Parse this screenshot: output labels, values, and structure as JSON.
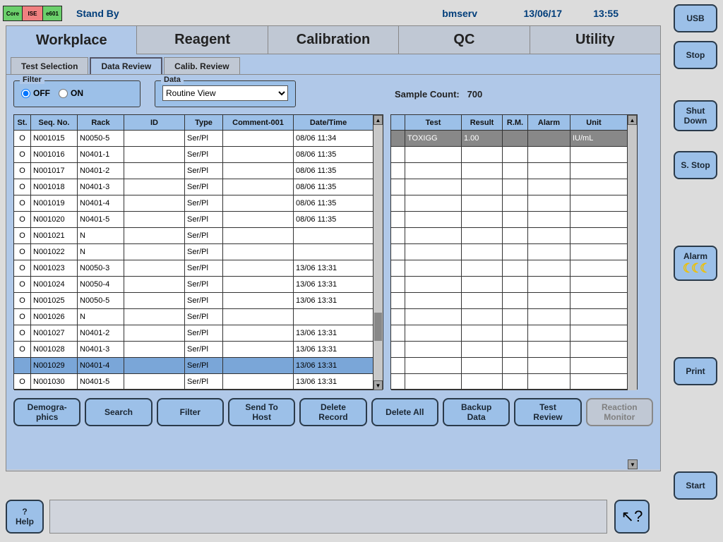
{
  "topbar": {
    "modules": [
      "Core",
      "ISE",
      "e601"
    ],
    "status": "Stand By",
    "user": "bmserv",
    "date": "13/06/17",
    "time": "13:55"
  },
  "side": {
    "usb": "USB",
    "stop": "Stop",
    "shutdown": "Shut Down",
    "sstop": "S. Stop",
    "alarm": "Alarm",
    "print": "Print",
    "start": "Start"
  },
  "main_tabs": [
    "Workplace",
    "Reagent",
    "Calibration",
    "QC",
    "Utility"
  ],
  "main_tab_active": 0,
  "sub_tabs": [
    "Test Selection",
    "Data Review",
    "Calib. Review"
  ],
  "sub_tab_active": 1,
  "filter": {
    "legend": "Filter",
    "off_label": "OFF",
    "on_label": "ON",
    "value": "OFF"
  },
  "data_box": {
    "legend": "Data",
    "selected": "Routine View"
  },
  "sample_count_label": "Sample Count:",
  "sample_count_value": "700",
  "left_headers": [
    "St.",
    "Seq. No.",
    "Rack",
    "ID",
    "Type",
    "Comment-001",
    "Date/Time"
  ],
  "left_rows": [
    {
      "st": "O",
      "seq": "N001015",
      "rack": "N0050-5",
      "id": "",
      "type": "Ser/Pl",
      "cmt": "",
      "dt": "08/06 11:34"
    },
    {
      "st": "O",
      "seq": "N001016",
      "rack": "N0401-1",
      "id": "",
      "type": "Ser/Pl",
      "cmt": "",
      "dt": "08/06 11:35"
    },
    {
      "st": "O",
      "seq": "N001017",
      "rack": "N0401-2",
      "id": "",
      "type": "Ser/Pl",
      "cmt": "",
      "dt": "08/06 11:35"
    },
    {
      "st": "O",
      "seq": "N001018",
      "rack": "N0401-3",
      "id": "",
      "type": "Ser/Pl",
      "cmt": "",
      "dt": "08/06 11:35"
    },
    {
      "st": "O",
      "seq": "N001019",
      "rack": "N0401-4",
      "id": "",
      "type": "Ser/Pl",
      "cmt": "",
      "dt": "08/06 11:35"
    },
    {
      "st": "O",
      "seq": "N001020",
      "rack": "N0401-5",
      "id": "",
      "type": "Ser/Pl",
      "cmt": "",
      "dt": "08/06 11:35"
    },
    {
      "st": "O",
      "seq": "N001021",
      "rack": "N",
      "id": "",
      "type": "Ser/Pl",
      "cmt": "",
      "dt": ""
    },
    {
      "st": "O",
      "seq": "N001022",
      "rack": "N",
      "id": "",
      "type": "Ser/Pl",
      "cmt": "",
      "dt": ""
    },
    {
      "st": "O",
      "seq": "N001023",
      "rack": "N0050-3",
      "id": "",
      "type": "Ser/Pl",
      "cmt": "",
      "dt": "13/06 13:31"
    },
    {
      "st": "O",
      "seq": "N001024",
      "rack": "N0050-4",
      "id": "",
      "type": "Ser/Pl",
      "cmt": "",
      "dt": "13/06 13:31"
    },
    {
      "st": "O",
      "seq": "N001025",
      "rack": "N0050-5",
      "id": "",
      "type": "Ser/Pl",
      "cmt": "",
      "dt": "13/06 13:31"
    },
    {
      "st": "O",
      "seq": "N001026",
      "rack": "N",
      "id": "",
      "type": "Ser/Pl",
      "cmt": "",
      "dt": ""
    },
    {
      "st": "O",
      "seq": "N001027",
      "rack": "N0401-2",
      "id": "",
      "type": "Ser/Pl",
      "cmt": "",
      "dt": "13/06 13:31"
    },
    {
      "st": "O",
      "seq": "N001028",
      "rack": "N0401-3",
      "id": "",
      "type": "Ser/Pl",
      "cmt": "",
      "dt": "13/06 13:31"
    },
    {
      "st": "",
      "seq": "N001029",
      "rack": "N0401-4",
      "id": "",
      "type": "Ser/Pl",
      "cmt": "",
      "dt": "13/06 13:31",
      "selected": true
    },
    {
      "st": "O",
      "seq": "N001030",
      "rack": "N0401-5",
      "id": "",
      "type": "Ser/Pl",
      "cmt": "",
      "dt": "13/06 13:31"
    }
  ],
  "right_headers": [
    "",
    "Test",
    "Result",
    "R.M.",
    "Alarm",
    "Unit"
  ],
  "right_rows": [
    {
      "test": "TOXIGG",
      "result": "1.00",
      "rm": "",
      "alarm": "",
      "unit": "IU/mL",
      "hl": true
    },
    {},
    {},
    {},
    {},
    {},
    {},
    {},
    {},
    {},
    {},
    {},
    {},
    {},
    {},
    {}
  ],
  "actions": [
    {
      "label": "Demogra-\nphics"
    },
    {
      "label": "Search"
    },
    {
      "label": "Filter"
    },
    {
      "label": "Send To\nHost"
    },
    {
      "label": "Delete\nRecord"
    },
    {
      "label": "Delete All"
    },
    {
      "label": "Backup\nData"
    },
    {
      "label": "Test\nReview"
    },
    {
      "label": "Reaction\nMonitor",
      "disabled": true
    }
  ],
  "help": "?\nHelp"
}
